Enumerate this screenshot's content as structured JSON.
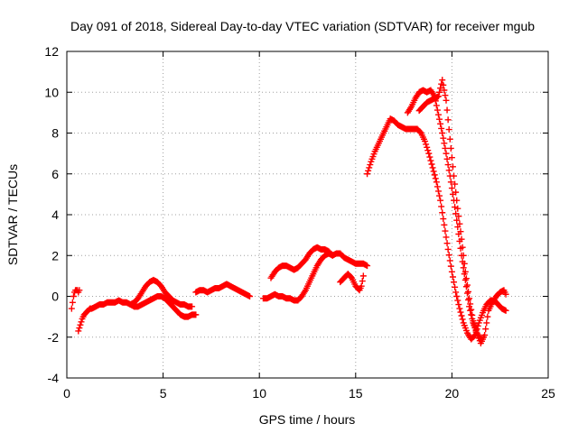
{
  "chart_data": {
    "type": "scatter",
    "title": "Day 091 of 2018, Sidereal Day-to-day VTEC variation (SDTVAR) for receiver mgub",
    "xlabel": "GPS time / hours",
    "ylabel": "SDTVAR / TECUs",
    "xlim": [
      0,
      25
    ],
    "ylim": [
      -4,
      12
    ],
    "xticks": [
      "0",
      "5",
      "10",
      "15",
      "20",
      "25"
    ],
    "yticks": [
      "-4",
      "-2",
      "0",
      "2",
      "4",
      "6",
      "8",
      "10",
      "12"
    ],
    "grid": true,
    "marker": "plus",
    "color": "#ff0000",
    "series": [
      {
        "x": [
          0.25,
          0.3,
          0.35,
          0.4,
          0.45,
          0.5,
          0.55,
          0.6,
          0.65
        ],
        "y": [
          -0.6,
          -0.3,
          0.0,
          0.2,
          0.3,
          0.3,
          0.3,
          0.2,
          0.3
        ]
      },
      {
        "x": [
          0.6,
          0.7,
          0.8,
          0.9,
          1.0,
          1.1,
          1.2,
          1.3,
          1.5,
          1.7,
          1.9,
          2.1,
          2.3,
          2.5,
          2.7,
          2.9,
          3.1,
          3.3,
          3.5,
          3.7,
          3.9,
          4.1,
          4.3,
          4.5,
          4.7,
          4.9,
          5.1,
          5.3,
          5.5,
          5.7,
          5.9,
          6.1,
          6.3,
          6.5,
          6.7
        ],
        "y": [
          -1.7,
          -1.4,
          -1.1,
          -0.9,
          -0.8,
          -0.7,
          -0.6,
          -0.6,
          -0.5,
          -0.4,
          -0.4,
          -0.3,
          -0.3,
          -0.3,
          -0.2,
          -0.3,
          -0.3,
          -0.4,
          -0.5,
          -0.5,
          -0.4,
          -0.3,
          -0.2,
          -0.1,
          0.0,
          0.0,
          -0.1,
          -0.3,
          -0.5,
          -0.7,
          -0.9,
          -1.0,
          -1.0,
          -0.9,
          -0.9
        ]
      },
      {
        "x": [
          3.3,
          3.5,
          3.7,
          3.9,
          4.1,
          4.3,
          4.5,
          4.7,
          4.9,
          5.1,
          5.3,
          5.5,
          5.7,
          5.9,
          6.1,
          6.3,
          6.5
        ],
        "y": [
          -0.4,
          -0.3,
          -0.1,
          0.2,
          0.5,
          0.7,
          0.8,
          0.7,
          0.5,
          0.2,
          0.0,
          -0.2,
          -0.3,
          -0.4,
          -0.4,
          -0.5,
          -0.5
        ]
      },
      {
        "x": [
          6.7,
          6.9,
          7.1,
          7.3,
          7.5,
          7.7,
          7.9,
          8.1,
          8.3,
          8.5,
          8.7,
          8.9,
          9.1,
          9.3,
          9.5
        ],
        "y": [
          0.2,
          0.3,
          0.3,
          0.2,
          0.3,
          0.4,
          0.4,
          0.5,
          0.6,
          0.5,
          0.4,
          0.3,
          0.2,
          0.1,
          0.0
        ]
      },
      {
        "x": [
          10.2,
          10.4,
          10.6,
          10.8,
          11.0,
          11.2,
          11.4,
          11.6,
          11.8,
          12.0,
          12.2,
          12.4,
          12.6,
          12.8,
          13.0,
          13.2,
          13.4,
          13.6,
          13.8,
          14.0,
          14.2,
          14.4,
          14.6,
          14.8,
          15.0,
          15.2,
          15.4,
          15.6
        ],
        "y": [
          -0.1,
          -0.1,
          0.0,
          0.1,
          0.0,
          0.0,
          -0.1,
          -0.1,
          -0.2,
          -0.2,
          0.0,
          0.3,
          0.7,
          1.1,
          1.5,
          1.8,
          2.0,
          2.1,
          2.0,
          2.1,
          2.1,
          1.9,
          1.8,
          1.7,
          1.6,
          1.6,
          1.6,
          1.5
        ]
      },
      {
        "x": [
          10.6,
          10.8,
          11.0,
          11.2,
          11.4,
          11.6,
          11.8,
          12.0,
          12.2,
          12.4,
          12.6,
          12.8,
          13.0,
          13.2,
          13.4,
          13.6,
          13.8
        ],
        "y": [
          0.9,
          1.2,
          1.4,
          1.5,
          1.5,
          1.4,
          1.3,
          1.4,
          1.6,
          1.8,
          2.1,
          2.3,
          2.4,
          2.3,
          2.3,
          2.2,
          2.0
        ]
      },
      {
        "x": [
          14.2,
          14.4,
          14.6,
          14.8,
          15.0,
          15.2,
          15.3,
          15.4
        ],
        "y": [
          0.7,
          0.9,
          1.1,
          0.9,
          0.5,
          0.3,
          0.5,
          1.0
        ]
      },
      {
        "x": [
          15.6,
          15.8,
          16.0,
          16.2,
          16.4,
          16.6,
          16.8,
          17.0,
          17.2,
          17.4,
          17.6,
          17.8,
          18.0,
          18.2,
          18.4,
          18.6,
          18.8,
          19.0,
          19.2,
          19.4,
          19.6,
          19.8,
          20.0,
          20.2,
          20.4,
          20.6,
          20.8,
          21.0,
          21.2,
          21.4,
          21.6,
          21.8,
          22.0,
          22.2,
          22.4,
          22.6,
          22.8
        ],
        "y": [
          6.0,
          6.6,
          7.1,
          7.5,
          7.9,
          8.3,
          8.7,
          8.6,
          8.4,
          8.3,
          8.2,
          8.2,
          8.2,
          8.2,
          8.0,
          7.6,
          7.0,
          6.3,
          5.6,
          4.7,
          3.5,
          2.3,
          1.2,
          0.2,
          -0.6,
          -1.3,
          -1.8,
          -2.1,
          -1.9,
          -1.3,
          -0.8,
          -0.4,
          -0.2,
          -0.2,
          -0.4,
          -0.6,
          -0.7
        ]
      },
      {
        "x": [
          17.7,
          17.9,
          18.1,
          18.3,
          18.5,
          18.7,
          18.9,
          19.1,
          19.3,
          19.5,
          19.7,
          19.9,
          20.1,
          20.3,
          20.5,
          20.7,
          20.9,
          21.1,
          21.3,
          21.5,
          21.7,
          21.9,
          22.1,
          22.3,
          22.5,
          22.7,
          22.8
        ],
        "y": [
          9.0,
          9.3,
          9.7,
          10.0,
          10.1,
          10.0,
          10.1,
          9.8,
          8.9,
          8.0,
          7.0,
          5.9,
          4.7,
          3.4,
          2.0,
          0.8,
          -0.5,
          -1.3,
          -1.8,
          -2.3,
          -1.9,
          -0.7,
          -0.3,
          0.0,
          0.2,
          0.3,
          0.1
        ]
      },
      {
        "x": [
          18.3,
          18.5,
          18.7,
          18.9,
          19.1,
          19.3,
          19.5,
          19.7,
          19.9,
          20.1,
          20.3,
          20.5,
          20.7,
          20.9,
          21.1,
          21.3,
          21.5
        ],
        "y": [
          9.1,
          9.3,
          9.5,
          9.6,
          9.7,
          9.8,
          10.6,
          9.6,
          7.7,
          5.9,
          4.3,
          2.8,
          1.2,
          -0.1,
          -1.2,
          -1.8,
          -2.1
        ]
      }
    ]
  }
}
